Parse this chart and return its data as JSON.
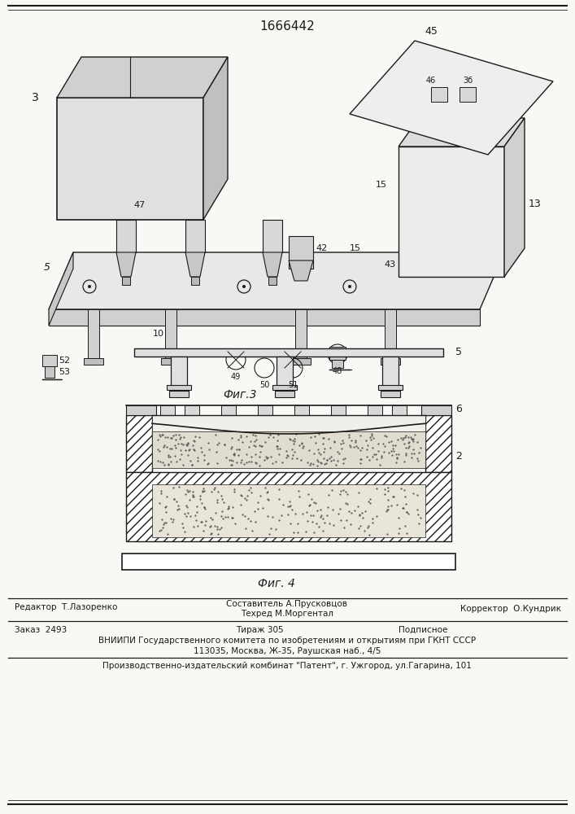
{
  "patent_number": "1666442",
  "bg_color": "#f8f8f5",
  "line_color": "#1a1a1a",
  "fig3_caption": "Фиг.3",
  "fig4_caption": "Фиг. 4",
  "footer_line1_left": "Редактор  Т.Лазоренко",
  "footer_line1_center_top": "Составитель А.Прусковцов",
  "footer_line1_center_bot": "Техред М.Моргентал",
  "footer_line1_right": "Корректор  О.Кундрик",
  "footer_order": "Заказ  2493",
  "footer_tirazh": "Тираж 305",
  "footer_podp": "Подписное",
  "footer_vnipi": "ВНИИПИ Государственного комитета по изобретениям и открытиям при ГКНТ СССР",
  "footer_addr": "113035, Москва, Ж-35, Раушская наб., 4/5",
  "footer_pub": "Производственно-издательский комбинат \"Патент\", г. Ужгород, ул.Гагарина, 101"
}
